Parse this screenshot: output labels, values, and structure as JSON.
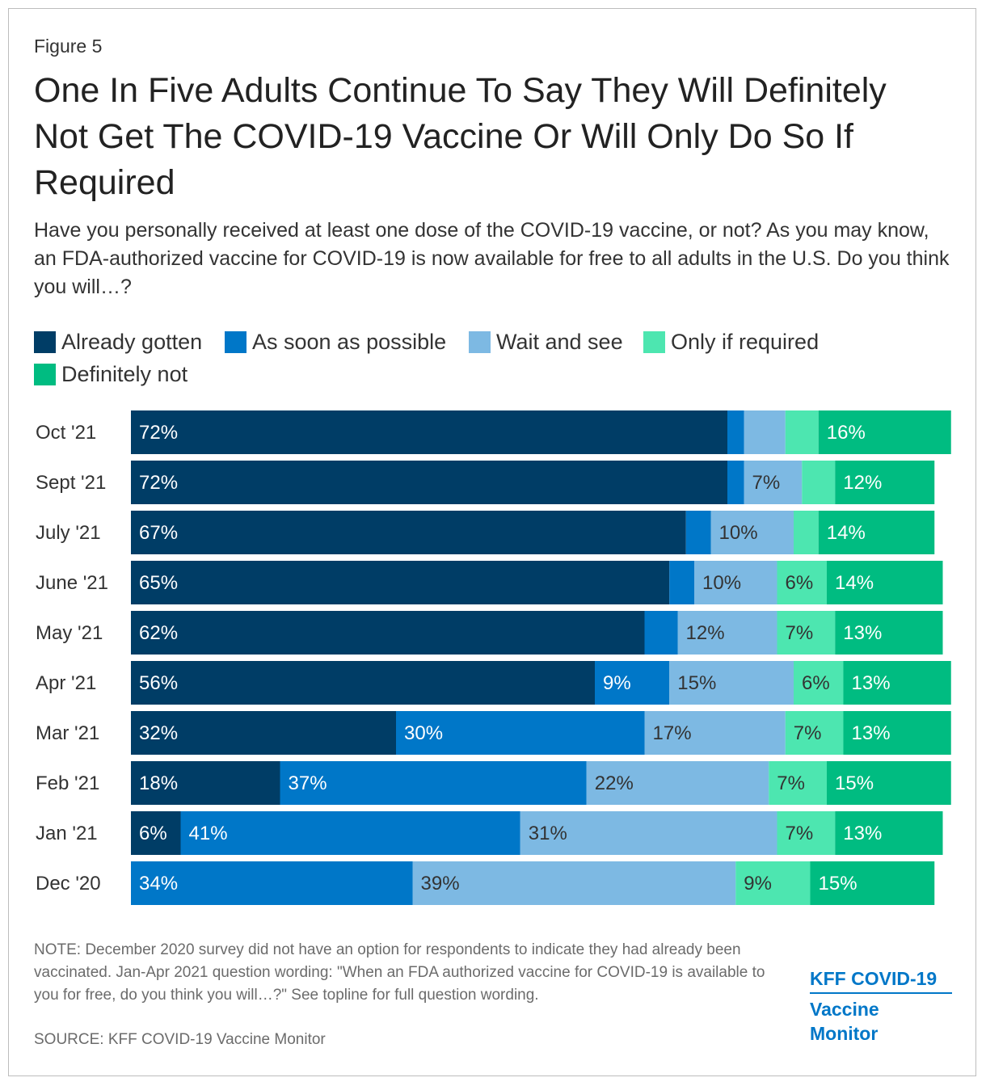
{
  "figure_label": "Figure 5",
  "title": "One In Five Adults Continue To Say They Will Definitely Not Get The COVID-19 Vaccine Or Will Only Do So If Required",
  "subtitle": "Have you personally received at least one dose of the COVID-19 vaccine, or not? As you may know, an FDA-authorized vaccine for COVID-19 is now available for free to all adults in the U.S. Do you think you will…?",
  "note": "NOTE: December 2020 survey did not have an option for respondents to indicate they had already been vaccinated. Jan-Apr 2021 question wording: \"When an FDA authorized vaccine for COVID-19 is available to you for free, do you think you will…?\" See topline for full question wording.",
  "source": "SOURCE: KFF COVID-19 Vaccine Monitor",
  "brand": {
    "line1": "KFF COVID-19",
    "line2": "Vaccine Monitor"
  },
  "chart_data": {
    "type": "bar",
    "orientation": "horizontal",
    "stacked": true,
    "title": "One In Five Adults Continue To Say They Will Definitely Not Get The COVID-19 Vaccine Or Will Only Do So If Required",
    "xlabel": "",
    "ylabel": "",
    "xlim": [
      0,
      100
    ],
    "grid": false,
    "legend_position": "top",
    "categories": [
      "Oct '21",
      "Sept '21",
      "July '21",
      "June '21",
      "May '21",
      "Apr '21",
      "Mar '21",
      "Feb '21",
      "Jan '21",
      "Dec '20"
    ],
    "series": [
      {
        "name": "Already gotten",
        "color": "#003d66",
        "label_color": "#ffffff",
        "values": [
          72,
          72,
          67,
          65,
          62,
          56,
          32,
          18,
          6,
          0
        ],
        "labels": [
          "72%",
          "72%",
          "67%",
          "65%",
          "62%",
          "56%",
          "32%",
          "18%",
          "6%",
          ""
        ]
      },
      {
        "name": "As soon as possible",
        "color": "#0077c8",
        "label_color": "#ffffff",
        "values": [
          2,
          2,
          3,
          3,
          4,
          9,
          30,
          37,
          41,
          34
        ],
        "labels": [
          "",
          "",
          "",
          "",
          "",
          "9%",
          "30%",
          "37%",
          "41%",
          "34%"
        ]
      },
      {
        "name": "Wait and see",
        "color": "#7db9e3",
        "label_color": "#333333",
        "values": [
          5,
          7,
          10,
          10,
          12,
          15,
          17,
          22,
          31,
          39
        ],
        "labels": [
          "",
          "7%",
          "10%",
          "10%",
          "12%",
          "15%",
          "17%",
          "22%",
          "31%",
          "39%"
        ]
      },
      {
        "name": "Only if required",
        "color": "#4de6b0",
        "label_color": "#333333",
        "values": [
          4,
          4,
          3,
          6,
          7,
          6,
          7,
          7,
          7,
          9
        ],
        "labels": [
          "",
          "",
          "",
          "6%",
          "7%",
          "6%",
          "7%",
          "7%",
          "7%",
          "9%"
        ]
      },
      {
        "name": "Definitely not",
        "color": "#00bc81",
        "label_color": "#ffffff",
        "values": [
          16,
          12,
          14,
          14,
          13,
          13,
          13,
          15,
          13,
          15
        ],
        "labels": [
          "16%",
          "12%",
          "14%",
          "14%",
          "13%",
          "13%",
          "13%",
          "15%",
          "13%",
          "15%"
        ]
      }
    ]
  }
}
